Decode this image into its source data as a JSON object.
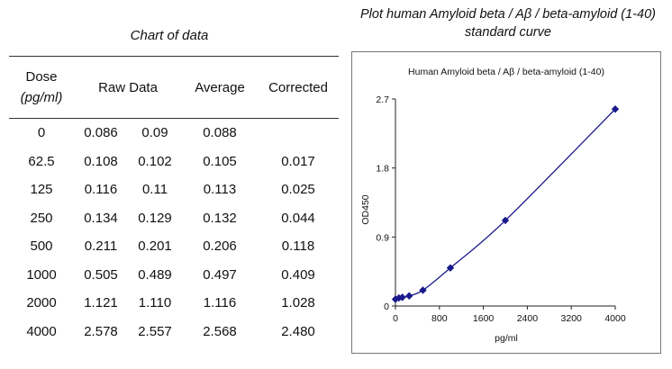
{
  "table": {
    "title": "Chart of data",
    "headers": {
      "dose": "Dose",
      "dose_unit": "(pg/ml)",
      "raw": "Raw Data",
      "average": "Average",
      "corrected": "Corrected"
    },
    "rows": [
      {
        "dose": "0",
        "raw1": "0.086",
        "raw2": "0.09",
        "average": "0.088",
        "corrected": ""
      },
      {
        "dose": "62.5",
        "raw1": "0.108",
        "raw2": "0.102",
        "average": "0.105",
        "corrected": "0.017"
      },
      {
        "dose": "125",
        "raw1": "0.116",
        "raw2": "0.11",
        "average": "0.113",
        "corrected": "0.025"
      },
      {
        "dose": "250",
        "raw1": "0.134",
        "raw2": "0.129",
        "average": "0.132",
        "corrected": "0.044"
      },
      {
        "dose": "500",
        "raw1": "0.211",
        "raw2": "0.201",
        "average": "0.206",
        "corrected": "0.118"
      },
      {
        "dose": "1000",
        "raw1": "0.505",
        "raw2": "0.489",
        "average": "0.497",
        "corrected": "0.409"
      },
      {
        "dose": "2000",
        "raw1": "1.121",
        "raw2": "1.110",
        "average": "1.116",
        "corrected": "1.028"
      },
      {
        "dose": "4000",
        "raw1": "2.578",
        "raw2": "2.557",
        "average": "2.568",
        "corrected": "2.480"
      }
    ]
  },
  "figure_title_line1": "Plot human Amyloid beta / Aβ / beta-amyloid (1-40)",
  "figure_title_line2": "standard curve",
  "chart_data": {
    "type": "scatter",
    "title": "Human Amyloid beta / Aβ / beta-amyloid (1-40)",
    "xlabel": "pg/ml",
    "ylabel": "OD450",
    "xlim": [
      0,
      4000
    ],
    "ylim": [
      0,
      2.7
    ],
    "x_ticks": [
      "0",
      "800",
      "1600",
      "2400",
      "3200",
      "4000"
    ],
    "y_ticks": [
      "0",
      "0.9",
      "1.8",
      "2.7"
    ],
    "x": [
      0,
      62.5,
      125,
      250,
      500,
      1000,
      2000,
      4000
    ],
    "y": [
      0.088,
      0.105,
      0.113,
      0.132,
      0.206,
      0.497,
      1.116,
      2.568
    ],
    "grid": false,
    "marker": "diamond",
    "color": "#1a1a8c"
  }
}
